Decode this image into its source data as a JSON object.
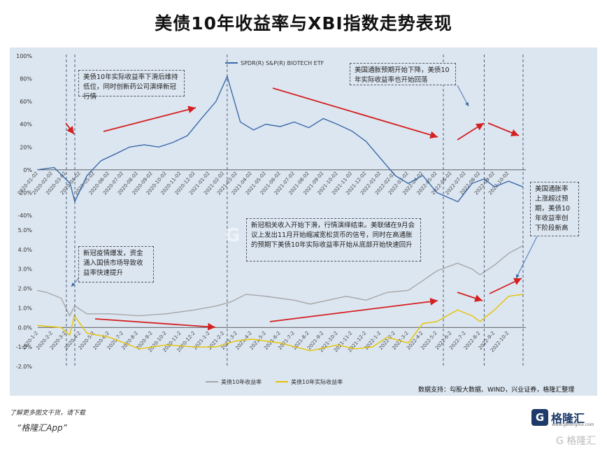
{
  "title": "美债10年收益率与XBI指数走势表现",
  "source_note": "数据支持：勾股大数据、WIND，兴业证券，格隆汇整理",
  "footer": {
    "more": "了解更多图文干货，请下载",
    "app": "“格隆汇App”"
  },
  "brand": {
    "mark": "G",
    "name": "格隆汇",
    "url": "www.gelonghui.com",
    "watermark": "G 格隆汇"
  },
  "annotations": {
    "note1": "美债10年实际收益率下滑后维持低位，同时创新药公司演绎新冠行情",
    "note2": "美国通胀预期开始下降，美债10年实际收益率也开始回落",
    "note3": "新冠疫情爆发，资金涌入国债市场导致收益率快速提升",
    "note4": "新冠相关收入开始下滑，行情演绎结束。美联储在9月会议上发出11月开始缩减宽松货币的信号，同时在高通胀的预期下美债10年实际收益率开始从底部开始快速回升",
    "note5": "美国通胀率上涨超过预期，美债10年收益率创下阶段新高"
  },
  "colors": {
    "xbi": "#3b6aa8",
    "nominal": "#a6a6a6",
    "real": "#e6c200",
    "arrow": "#d42020",
    "panel": "#dce6f1"
  },
  "chart_data": [
    {
      "type": "line",
      "legend": "top",
      "series": [
        {
          "name": "SPDR(R) S&P(R) BIOTECH ETF",
          "color": "#3b6aa8"
        }
      ],
      "x": [
        "2019-12-31",
        "2020-02-05",
        "2020-03-10",
        "2020-03-20",
        "2020-04-15",
        "2020-05-15",
        "2020-06-15",
        "2020-07-15",
        "2020-08-15",
        "2020-09-15",
        "2020-10-15",
        "2020-11-15",
        "2020-12-15",
        "2021-01-15",
        "2021-02-08",
        "2021-03-08",
        "2021-04-05",
        "2021-05-01",
        "2021-06-01",
        "2021-07-01",
        "2021-08-01",
        "2021-09-01",
        "2021-10-01",
        "2021-11-01",
        "2021-12-01",
        "2022-01-01",
        "2022-02-01",
        "2022-03-01",
        "2022-04-01",
        "2022-05-01",
        "2022-06-15",
        "2022-07-15",
        "2022-08-10",
        "2022-09-01",
        "2022-10-01",
        "2022-11-01"
      ],
      "values": [
        0,
        2,
        -12,
        -28,
        -5,
        8,
        14,
        20,
        22,
        20,
        24,
        30,
        45,
        60,
        82,
        42,
        35,
        40,
        38,
        42,
        37,
        45,
        40,
        34,
        25,
        10,
        -5,
        -12,
        -5,
        -20,
        -28,
        -12,
        -8,
        -15,
        -10,
        -15
      ],
      "yticks": [
        "100%",
        "80%",
        "60%",
        "40%",
        "20%",
        "0%",
        "-20%",
        "-40%"
      ],
      "ylim": [
        -40,
        100
      ],
      "xticks": [
        "2020-01-02",
        "2020-02-02",
        "2020-03-02",
        "2020-04-02",
        "2020-05-02",
        "2020-06-02",
        "2020-07-02",
        "2020-08-02",
        "2020-09-02",
        "2020-10-02",
        "2020-11-02",
        "2020-12-02",
        "2021-01-02",
        "2021-02-02",
        "2021-03-02",
        "2021-04-02",
        "2021-05-02",
        "2021-06-02",
        "2021-07-02",
        "2021-08-02",
        "2021-09-02",
        "2021-10-02",
        "2021-11-02",
        "2021-12-02",
        "2022-01-02",
        "2022-02-02",
        "2022-03-02",
        "2022-04-02",
        "2022-05-02",
        "2022-06-02",
        "2022-07-02",
        "2022-08-02",
        "2022-09-02",
        "2022-10-02"
      ]
    },
    {
      "type": "line",
      "legend": "bottom",
      "series": [
        {
          "name": "美债10年收益率",
          "color": "#a6a6a6",
          "x": [
            "2019-12-31",
            "2020-01-20",
            "2020-02-20",
            "2020-03-09",
            "2020-03-20",
            "2020-04-15",
            "2020-06-01",
            "2020-08-04",
            "2020-10-01",
            "2020-12-01",
            "2021-01-15",
            "2021-02-15",
            "2021-03-20",
            "2021-05-01",
            "2021-07-01",
            "2021-08-04",
            "2021-10-20",
            "2021-12-01",
            "2022-01-15",
            "2022-03-01",
            "2022-04-01",
            "2022-05-01",
            "2022-06-14",
            "2022-07-15",
            "2022-08-01",
            "2022-09-01",
            "2022-10-01",
            "2022-11-01"
          ],
          "values": [
            1.9,
            1.8,
            1.5,
            0.6,
            1.1,
            0.7,
            0.7,
            0.6,
            0.7,
            0.9,
            1.1,
            1.3,
            1.7,
            1.6,
            1.4,
            1.2,
            1.6,
            1.4,
            1.8,
            1.9,
            2.4,
            2.9,
            3.3,
            3.0,
            2.7,
            3.2,
            3.8,
            4.2
          ]
        },
        {
          "name": "美债10年实际收益率",
          "color": "#e6c200",
          "x": [
            "2019-12-31",
            "2020-02-20",
            "2020-03-09",
            "2020-03-19",
            "2020-04-15",
            "2020-06-01",
            "2020-08-05",
            "2020-10-01",
            "2020-12-01",
            "2021-01-15",
            "2021-02-25",
            "2021-04-01",
            "2021-06-01",
            "2021-08-04",
            "2021-10-01",
            "2021-11-08",
            "2021-12-15",
            "2022-01-15",
            "2022-03-01",
            "2022-04-01",
            "2022-05-01",
            "2022-06-14",
            "2022-07-15",
            "2022-08-01",
            "2022-09-01",
            "2022-10-01",
            "2022-11-01"
          ],
          "values": [
            0.1,
            0.0,
            -0.4,
            0.6,
            -0.3,
            -0.5,
            -1.1,
            -0.9,
            -1.0,
            -1.0,
            -0.7,
            -0.6,
            -0.8,
            -1.2,
            -0.9,
            -1.1,
            -1.0,
            -0.5,
            -0.8,
            0.2,
            0.3,
            0.9,
            0.6,
            0.3,
            0.9,
            1.6,
            1.7
          ]
        }
      ],
      "yticks": [
        "5.0%",
        "4.0%",
        "3.0%",
        "2.0%",
        "1.0%",
        "0.0%",
        "-1.0%",
        "-2.0%"
      ],
      "ylim": [
        -2,
        5
      ],
      "xticks": [
        "2020-1-2",
        "2020-2-2",
        "2020-3-2",
        "2020-4-2",
        "2020-5-2",
        "2020-6-2",
        "2020-7-2",
        "2020-8-2",
        "2020-9-2",
        "2020-10-2",
        "2020-11-2",
        "2020-12-2",
        "2021-1-2",
        "2021-2-2",
        "2021-3-2",
        "2021-4-2",
        "2021-5-2",
        "2021-6-2",
        "2021-7-2",
        "2021-8-2",
        "2021-9-2",
        "2021-10-2",
        "2021-11-2",
        "2021-12-2",
        "2022-1-2",
        "2022-2-2",
        "2022-3-2",
        "2022-4-2",
        "2022-5-2",
        "2022-6-2",
        "2022-7-2",
        "2022-8-2",
        "2022-9-2",
        "2022-10-2"
      ]
    }
  ]
}
